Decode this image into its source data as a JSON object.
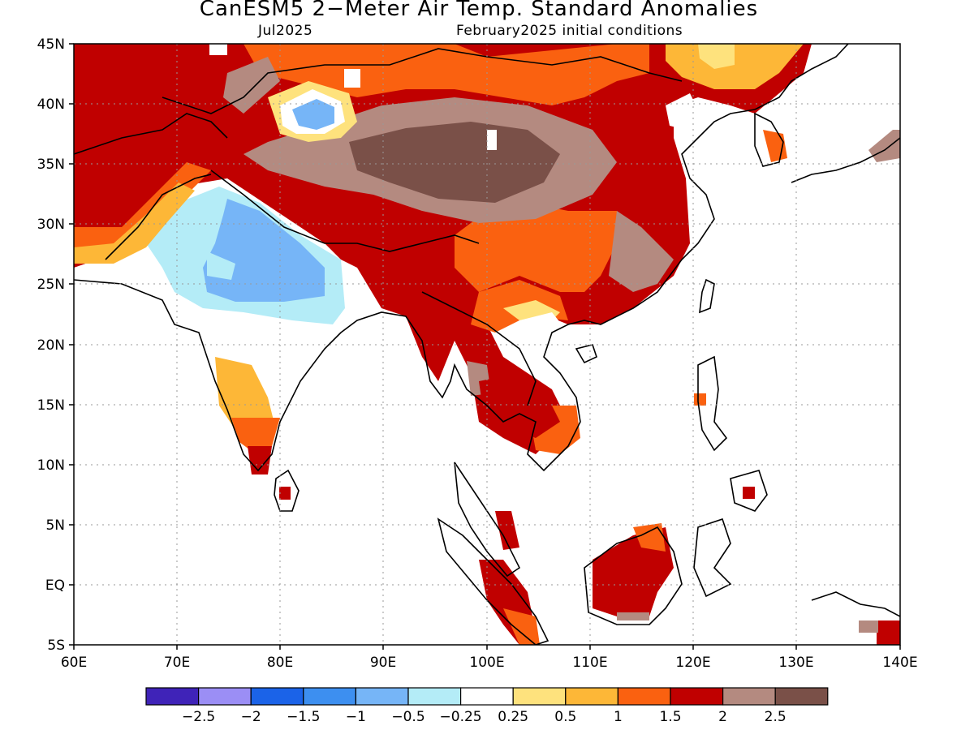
{
  "header": {
    "title": "CanESM5 2−Meter Air Temp. Standard Anomalies",
    "target_month": "Jul2025",
    "init": "February2025 initial conditions"
  },
  "map": {
    "lon_labels": [
      "60E",
      "70E",
      "80E",
      "90E",
      "100E",
      "110E",
      "120E",
      "130E",
      "140E"
    ],
    "lat_labels": [
      "45N",
      "40N",
      "35N",
      "30N",
      "25N",
      "20N",
      "15N",
      "10N",
      "5N",
      "EQ",
      "5S"
    ],
    "lon_range": [
      60,
      140
    ],
    "lat_range": [
      -5,
      45
    ],
    "grid": "dotted"
  },
  "colorbar": {
    "colors": [
      "#3f23b8",
      "#9b8ef5",
      "#1b63e8",
      "#3d8ff0",
      "#76b5f7",
      "#b4ecf7",
      "#ffffff",
      "#fee27d",
      "#fdb737",
      "#fa6110",
      "#c00000",
      "#b48a80",
      "#7a5048"
    ],
    "labels": [
      "−2.5",
      "−2",
      "−1.5",
      "−1",
      "−0.5",
      "−0.25",
      "0.25",
      "0.5",
      "1",
      "1.5",
      "2",
      "2.5"
    ]
  }
}
